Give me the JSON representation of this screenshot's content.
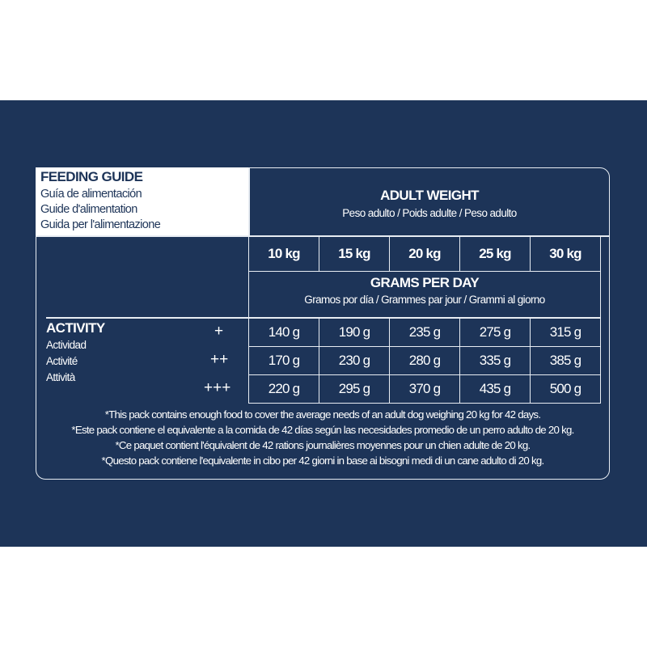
{
  "title": {
    "main": "FEEDING GUIDE",
    "es": "Guía de alimentación",
    "fr": "Guide d'alimentation",
    "it": "Guida per l'alimentazione"
  },
  "adult_weight": {
    "label": "ADULT WEIGHT",
    "translations": "Peso adulto / Poids adulte / Peso adulto",
    "weights": [
      "10 kg",
      "15 kg",
      "20 kg",
      "25 kg",
      "30 kg"
    ]
  },
  "grams_per_day": {
    "label": "GRAMS PER DAY",
    "translations": "Gramos por día / Grammes par jour / Grammi al giorno"
  },
  "activity": {
    "label": "ACTIVITY",
    "es": "Actividad",
    "fr": "Activité",
    "it": "Attività",
    "rows": [
      {
        "level": "+",
        "values": [
          "140 g",
          "190 g",
          "235 g",
          "275 g",
          "315 g"
        ]
      },
      {
        "level": "++",
        "values": [
          "170 g",
          "230 g",
          "280 g",
          "335 g",
          "385 g"
        ]
      },
      {
        "level": "+++",
        "values": [
          "220 g",
          "295 g",
          "370 g",
          "435 g",
          "500 g"
        ]
      }
    ]
  },
  "footnotes": [
    "*This pack contains enough food to cover the average needs of an adult dog weighing 20 kg for 42 days.",
    "*Este pack contiene el equivalente a la comida de 42 días según las necesidades promedio de un perro adulto de 20 kg.",
    "*Ce paquet contient l'équivalent de 42 rations journalières moyennes pour un chien adulte de 20 kg.",
    "*Questo pack contiene l'equivalente in cibo per 42 giorni in base ai bisogni medi di un cane adulto di 20 kg."
  ],
  "colors": {
    "background": "#1d3458",
    "lines": "#e8edf3",
    "title_box": "#ffffff"
  }
}
